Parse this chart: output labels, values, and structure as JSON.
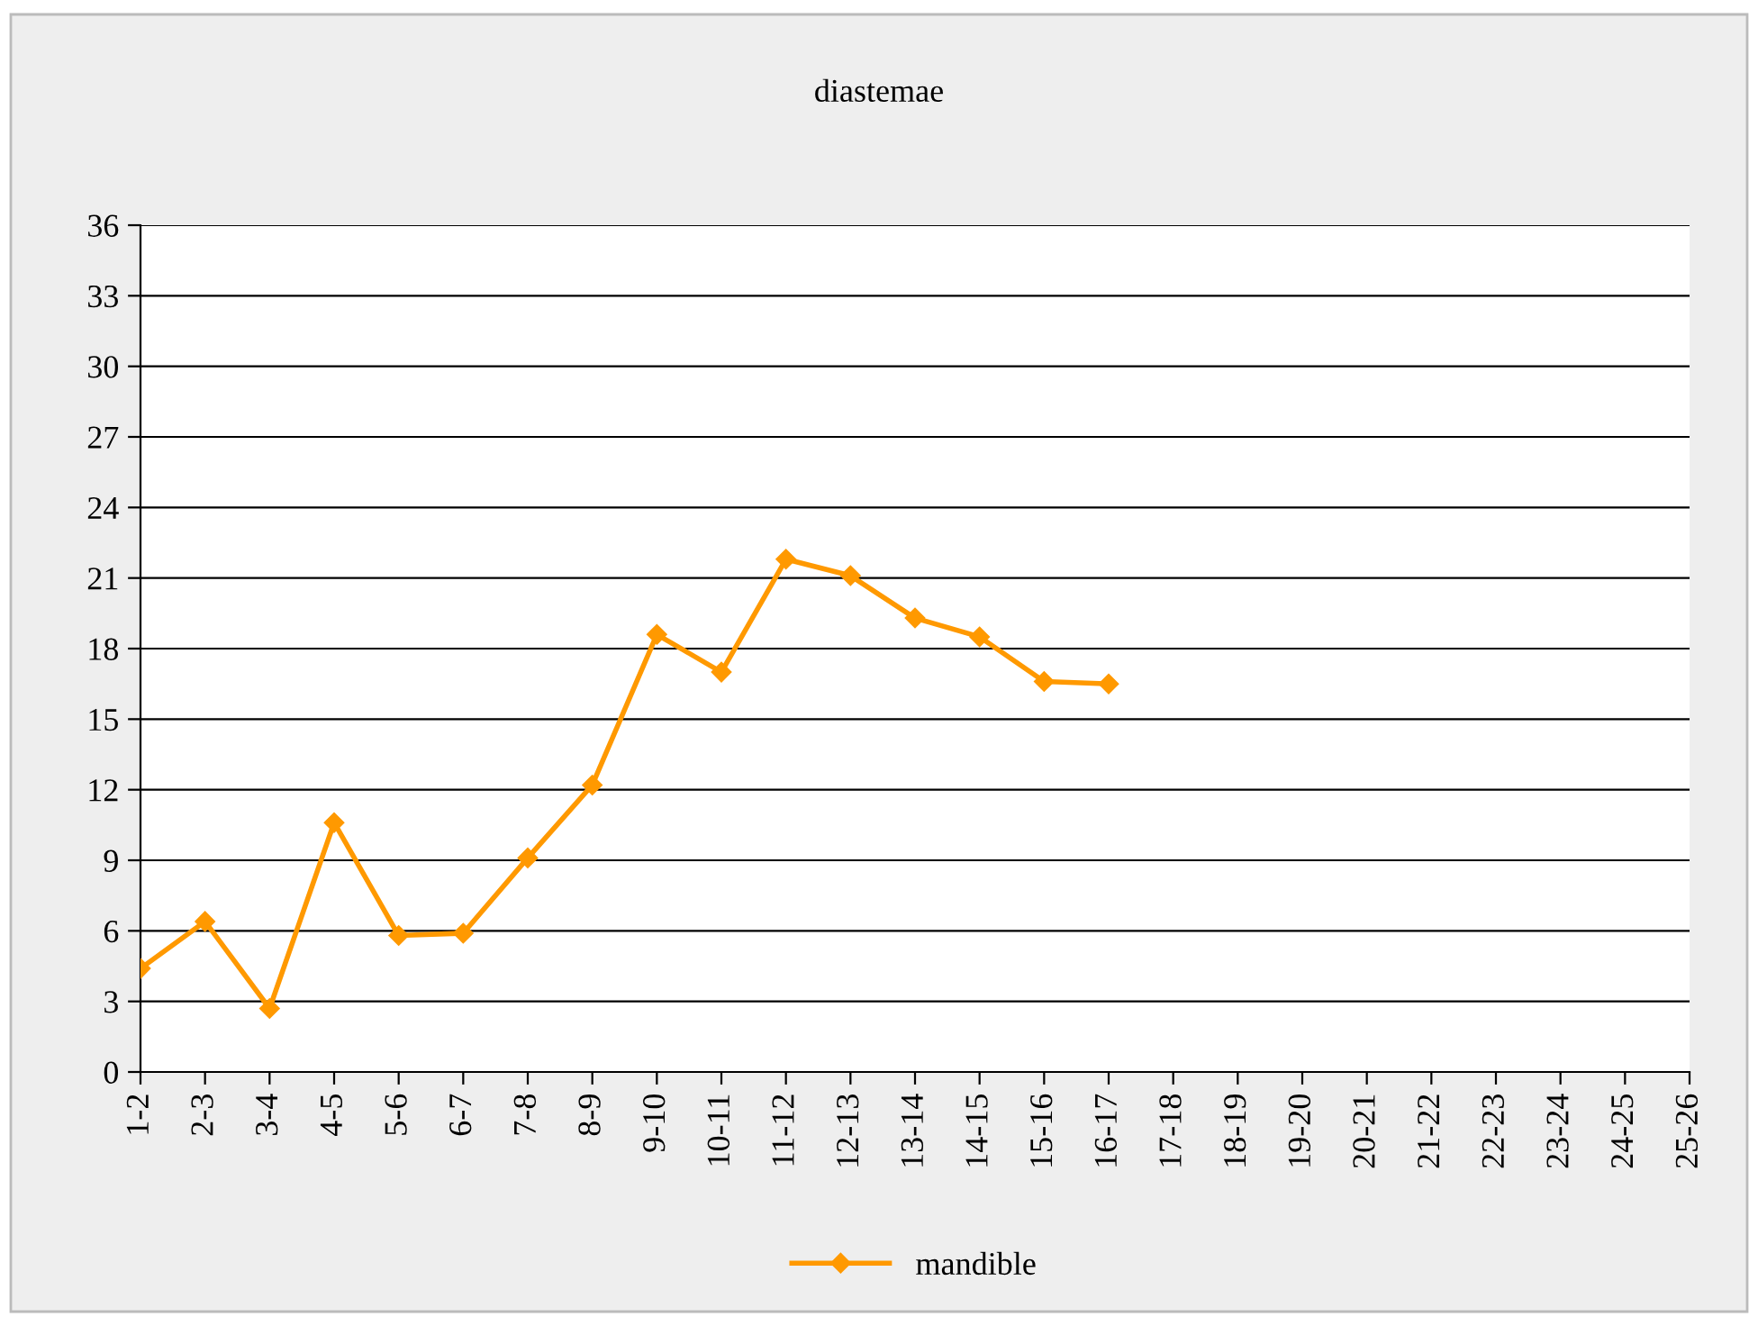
{
  "chart_data": {
    "type": "line",
    "title": "diastemae",
    "categories": [
      "1-2",
      "2-3",
      "3-4",
      "4-5",
      "5-6",
      "6-7",
      "7-8",
      "8-9",
      "9-10",
      "10-11",
      "11-12",
      "12-13",
      "13-14",
      "14-15",
      "15-16",
      "16-17",
      "17-18",
      "18-19",
      "19-20",
      "20-21",
      "21-22",
      "22-23",
      "23-24",
      "24-25",
      "25-26"
    ],
    "series": [
      {
        "name": "mandible",
        "color": "#ff9900",
        "values": [
          4.4,
          6.4,
          2.7,
          10.6,
          5.8,
          5.9,
          9.1,
          12.2,
          18.6,
          17.0,
          21.8,
          21.1,
          19.3,
          18.5,
          16.6,
          16.5,
          null,
          null,
          null,
          null,
          null,
          null,
          null,
          null,
          null
        ]
      }
    ],
    "ylim": [
      0,
      36
    ],
    "yticks": [
      0,
      3,
      6,
      9,
      12,
      15,
      18,
      21,
      24,
      27,
      30,
      33,
      36
    ],
    "grid": "y",
    "legend": "bottom",
    "marker": "diamond",
    "line_style": "solid"
  }
}
